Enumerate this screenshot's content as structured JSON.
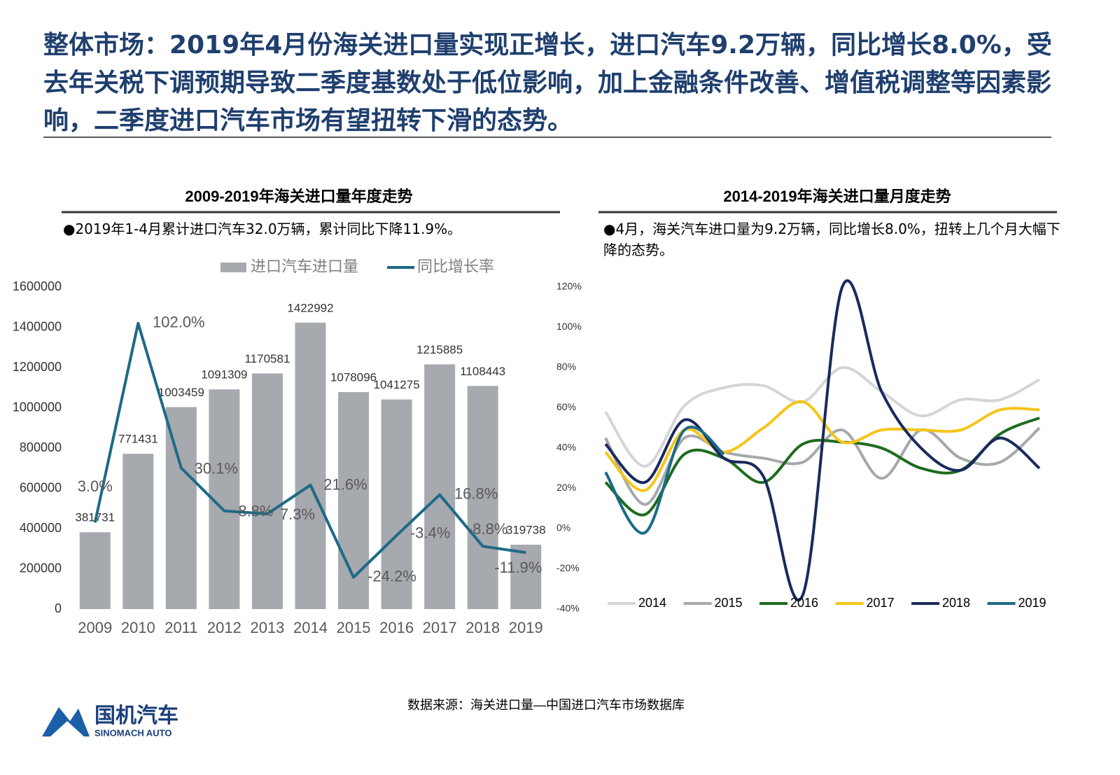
{
  "header": {
    "title": "整体市场：2019年4月份海关进口量实现正增长，进口汽车9.2万辆，同比增长8.0%，受去年关税下调预期导致二季度基数处于低位影响，加上金融条件改善、增值税调整等因素影响，二季度进口汽车市场有望扭转下滑的态势。"
  },
  "chart_data": [
    {
      "type": "bar",
      "title": "2009-2019年海关进口量年度走势",
      "note": "●2019年1-4月累计进口汽车32.0万辆，累计同比下降11.9%。",
      "categories": [
        "2009",
        "2010",
        "2011",
        "2012",
        "2013",
        "2014",
        "2015",
        "2016",
        "2017",
        "2018",
        "2019"
      ],
      "series": [
        {
          "name": "进口汽车进口量",
          "type": "bar",
          "color": "#a6a9ae",
          "values": [
            381731,
            771431,
            1003459,
            1091309,
            1170581,
            1422992,
            1078096,
            1041275,
            1215885,
            1108443,
            319738
          ]
        },
        {
          "name": "同比增长率",
          "type": "line",
          "axis": "y2",
          "color": "#1d6a87",
          "values": [
            3.0,
            102.0,
            30.1,
            8.8,
            7.3,
            21.6,
            -24.2,
            -3.4,
            16.8,
            -8.8,
            -11.9
          ],
          "value_labels": [
            "3.0%",
            "102.0%",
            "30.1%",
            "8.8%",
            "7.3%",
            "21.6%",
            "-24.2%",
            "-3.4%",
            "16.8%",
            "-8.8%",
            "-11.9%"
          ]
        }
      ],
      "ylim": [
        0,
        1600000
      ],
      "yticks": [
        0,
        200000,
        400000,
        600000,
        800000,
        1000000,
        1200000,
        1400000,
        1600000
      ],
      "y2lim": [
        -40,
        120
      ],
      "y2ticks": [
        {
          "value": -40,
          "label": "-40%"
        },
        {
          "value": -20,
          "label": "-20%"
        },
        {
          "value": 0,
          "label": "0%"
        },
        {
          "value": 20,
          "label": "20%"
        },
        {
          "value": 40,
          "label": "40%"
        },
        {
          "value": 60,
          "label": "60%"
        },
        {
          "value": 80,
          "label": "80%"
        },
        {
          "value": 100,
          "label": "100%"
        },
        {
          "value": 120,
          "label": "120%"
        }
      ],
      "legend": "top"
    },
    {
      "type": "line",
      "title": "2014-2019年海关进口量月度走势",
      "note": "●4月，海关汽车进口量为9.2万辆，同比增长8.0%，扭转上几个月大幅下降的态势。",
      "categories": [
        null,
        null,
        null,
        null,
        null,
        null,
        null,
        null,
        null,
        null,
        null,
        null
      ],
      "series": [
        {
          "name": "2014",
          "color": "#d4d5d7",
          "values": [
            58,
            31,
            61,
            70,
            71,
            63,
            80,
            68,
            56,
            64,
            64,
            74
          ]
        },
        {
          "name": "2015",
          "color": "#a6a8ab",
          "values": [
            45,
            12,
            45,
            38,
            35,
            33,
            49,
            25,
            49,
            35,
            33,
            50
          ]
        },
        {
          "name": "2016",
          "color": "#1e6b1e",
          "values": [
            23,
            7,
            37,
            35,
            23,
            42,
            43,
            40,
            30,
            29,
            47,
            55
          ]
        },
        {
          "name": "2017",
          "color": "#f5c518",
          "values": [
            38,
            19,
            49,
            38,
            50,
            63,
            43,
            49,
            49,
            49,
            59,
            59
          ]
        },
        {
          "name": "2018",
          "color": "#1a2a5e",
          "values": [
            42,
            23,
            54,
            35,
            26,
            -33,
            120,
            68,
            40,
            29,
            45,
            30
          ]
        },
        {
          "name": "2019",
          "color": "#1b6a86",
          "values": [
            28,
            -2,
            49,
            37,
            null,
            null,
            null,
            null,
            null,
            null,
            null,
            null
          ]
        }
      ],
      "legend": "bottom"
    }
  ],
  "footer": {
    "source": "数据来源：海关进口量—中国进口汽车市场数据库",
    "logo_name": "国机汽车",
    "logo_english": "SINOMACH AUTO"
  }
}
